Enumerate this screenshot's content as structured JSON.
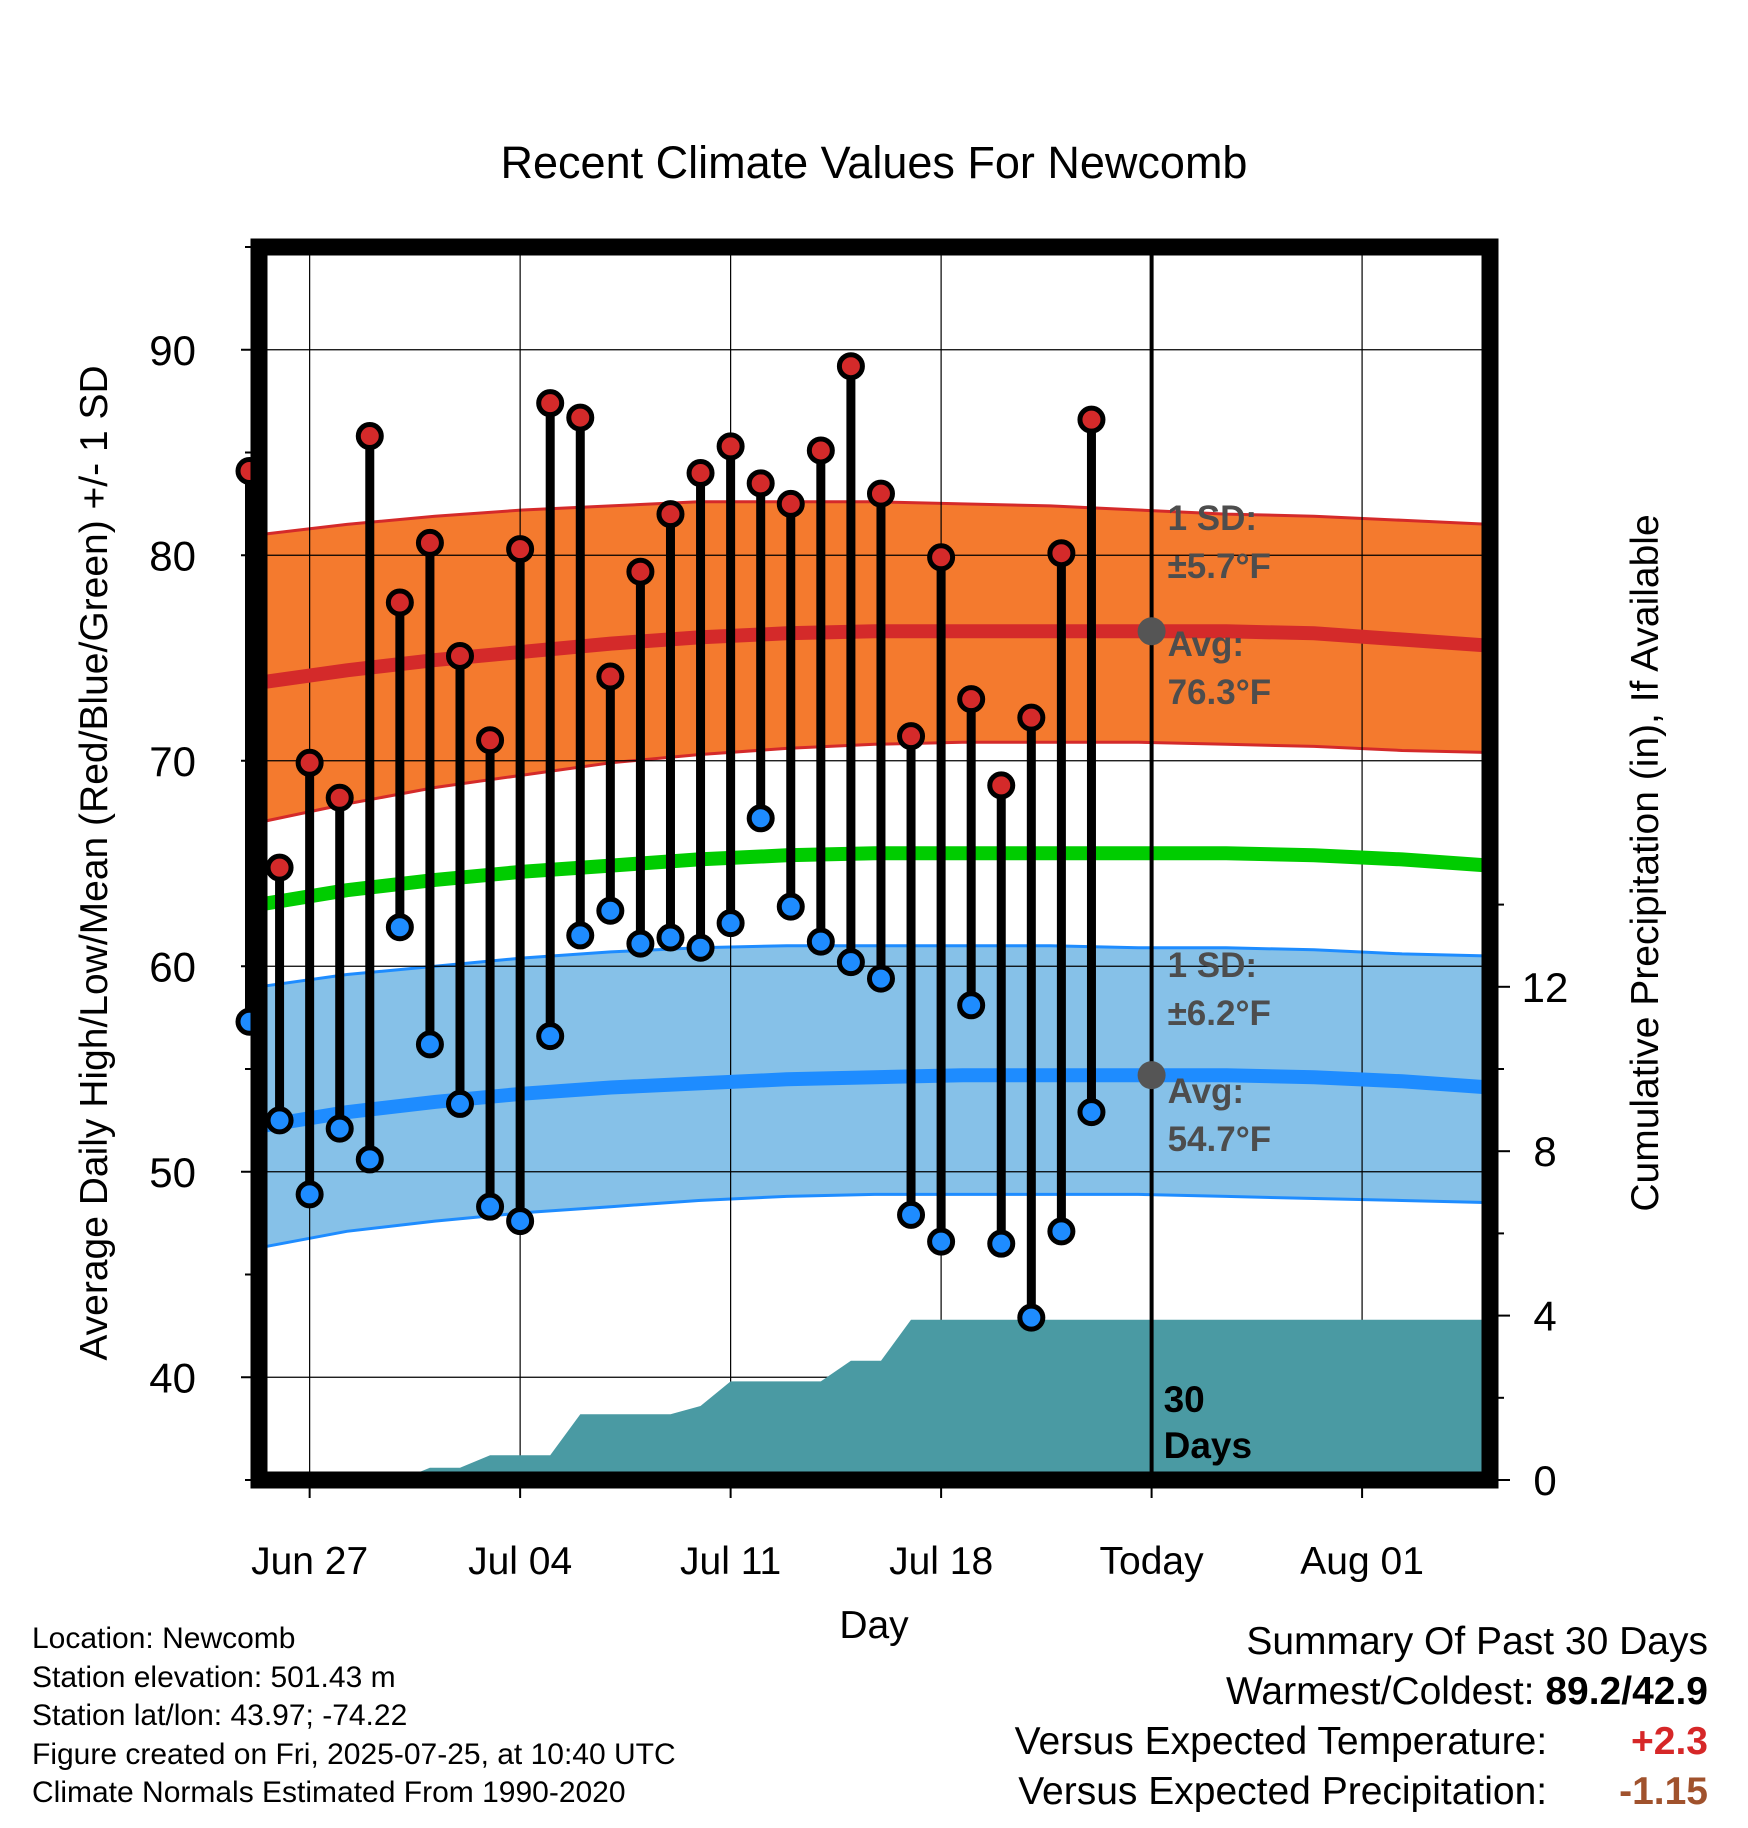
{
  "chart_data": {
    "type": "line",
    "title": "Recent Climate Values For Newcomb",
    "xlabel": "Day",
    "ylabel": "Average Daily High/Low/Mean (Red/Blue/Green) +/- 1 SD",
    "y2label": "Cumulative Precipitation (in), If Available",
    "ylim": [
      35,
      95
    ],
    "y2lim": [
      0,
      30
    ],
    "y_ticks": [
      40,
      50,
      60,
      70,
      80,
      90
    ],
    "y2_ticks": [
      0,
      4,
      8,
      12
    ],
    "x_ticks": [
      "Jun 27",
      "Jul 04",
      "Jul 11",
      "Jul 18",
      "Today",
      "Aug 01"
    ],
    "grid": true,
    "today_marker": "Today",
    "period_label": "30 Days",
    "highs": [
      84.1,
      64.8,
      69.9,
      68.2,
      85.8,
      77.7,
      80.6,
      75.1,
      71.0,
      80.3,
      87.4,
      86.7,
      74.1,
      79.2,
      82.0,
      84.0,
      85.3,
      83.5,
      82.5,
      85.1,
      89.2,
      83.0,
      71.2,
      79.9,
      73.0,
      68.8,
      72.1,
      80.1,
      86.6
    ],
    "lows": [
      57.3,
      52.5,
      48.9,
      52.1,
      50.6,
      61.9,
      56.2,
      53.3,
      48.3,
      47.6,
      56.6,
      61.5,
      62.7,
      61.1,
      61.4,
      60.9,
      62.1,
      67.2,
      62.9,
      61.2,
      60.2,
      59.4,
      47.9,
      46.6,
      58.1,
      46.5,
      42.9,
      47.1,
      52.9
    ],
    "normal_high": [
      73.8,
      74.4,
      74.9,
      75.3,
      75.7,
      76.0,
      76.2,
      76.3,
      76.3,
      76.3,
      76.3,
      76.3,
      76.2,
      75.9,
      75.6
    ],
    "normal_low": [
      52.2,
      52.9,
      53.4,
      53.8,
      54.1,
      54.3,
      54.5,
      54.6,
      54.7,
      54.7,
      54.7,
      54.7,
      54.6,
      54.4,
      54.1
    ],
    "normal_mean": [
      63.0,
      63.7,
      64.2,
      64.6,
      64.9,
      65.2,
      65.4,
      65.5,
      65.5,
      65.5,
      65.5,
      65.5,
      65.4,
      65.2,
      64.9
    ],
    "high_sd_band": {
      "upper": [
        81.0,
        81.5,
        81.9,
        82.2,
        82.4,
        82.6,
        82.6,
        82.6,
        82.5,
        82.4,
        82.2,
        82.0,
        81.9,
        81.7,
        81.5
      ],
      "lower": [
        67.0,
        67.9,
        68.7,
        69.3,
        69.9,
        70.3,
        70.6,
        70.8,
        70.9,
        70.9,
        70.9,
        70.8,
        70.7,
        70.5,
        70.4
      ]
    },
    "low_sd_band": {
      "upper": [
        59.0,
        59.6,
        60.0,
        60.4,
        60.7,
        60.9,
        61.0,
        61.0,
        61.0,
        61.0,
        60.9,
        60.9,
        60.8,
        60.6,
        60.5
      ],
      "lower": [
        46.3,
        47.1,
        47.6,
        48.0,
        48.3,
        48.6,
        48.8,
        48.9,
        48.9,
        48.9,
        48.9,
        48.8,
        48.7,
        48.6,
        48.5
      ]
    },
    "cumulative_precip": [
      0,
      0,
      0,
      0,
      0,
      0,
      0.3,
      0.3,
      0.6,
      0.6,
      0.6,
      1.6,
      1.6,
      1.6,
      1.6,
      1.8,
      2.4,
      2.4,
      2.4,
      2.4,
      2.9,
      2.9,
      3.9,
      3.9,
      3.9,
      3.9,
      3.9,
      3.9,
      3.9,
      3.9,
      3.9,
      3.9,
      3.9,
      3.9,
      3.9,
      3.9,
      3.9,
      3.9,
      3.9,
      3.9,
      3.9
    ],
    "annotations": {
      "high_sd_label": [
        "1 SD:",
        "±5.7°F"
      ],
      "high_avg_label": [
        "Avg:",
        "76.3°F"
      ],
      "low_sd_label": [
        "1 SD:",
        "±6.2°F"
      ],
      "low_avg_label": [
        "Avg:",
        "54.7°F"
      ],
      "today_high_avg": 76.3,
      "today_low_avg": 54.7
    },
    "colors": {
      "high_band": "#f47a2e",
      "high_line": "#d42a2a",
      "high_dot": "#d42a2a",
      "low_band": "#86c1e8",
      "low_line": "#1e8cff",
      "low_dot": "#1e8cff",
      "mean_line": "#00cc00",
      "precip": "#4a9aa3",
      "annotation_text": "#4d4d4d"
    }
  },
  "footer": {
    "location": "Location: Newcomb",
    "elevation": "Station elevation: 501.43 m",
    "latlon": "Station lat/lon: 43.97; -74.22",
    "created": "Figure created on Fri, 2025-07-25, at 10:40 UTC",
    "normals": "Climate Normals Estimated From 1990-2020"
  },
  "summary": {
    "title": "Summary Of Past 30 Days",
    "warmest_label": "Warmest/Coldest:",
    "warmest_value": "89.2/42.9",
    "temp_label": "Versus Expected Temperature:",
    "temp_value": "+2.3",
    "precip_label": "Versus Expected Precipitation:",
    "precip_value": "-1.15"
  }
}
